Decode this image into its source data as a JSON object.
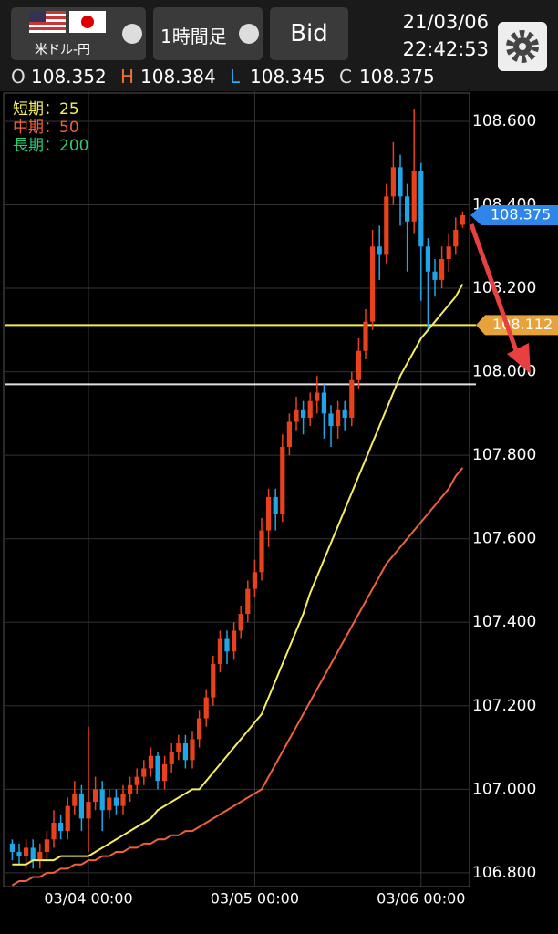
{
  "header": {
    "pair": "米ドル-円",
    "timeframe": "1時間足",
    "price_side": "Bid",
    "date": "21/03/06",
    "time": "22:42:53",
    "ohlc": [
      {
        "label": "O",
        "value": 108.352
      },
      {
        "label": "H",
        "value": 108.384
      },
      {
        "label": "L",
        "value": 108.345
      },
      {
        "label": "C",
        "value": 108.375
      }
    ]
  },
  "chart_data": {
    "type": "candlestick",
    "categories": [
      null,
      null,
      null,
      null,
      null,
      null,
      null,
      null,
      null,
      null,
      null,
      "03/04 00:00",
      null,
      null,
      null,
      null,
      null,
      null,
      null,
      null,
      null,
      null,
      null,
      null,
      null,
      null,
      null,
      null,
      null,
      null,
      null,
      null,
      null,
      null,
      null,
      "03/05 00:00",
      null,
      null,
      null,
      null,
      null,
      null,
      null,
      null,
      null,
      null,
      null,
      null,
      null,
      null,
      null,
      null,
      null,
      null,
      null,
      null,
      null,
      null,
      null,
      "03/06 00:00",
      null,
      null,
      null,
      null,
      null,
      null
    ],
    "open": [
      106.87,
      106.85,
      106.84,
      106.86,
      106.83,
      106.85,
      106.88,
      106.92,
      106.9,
      106.96,
      106.99,
      106.93,
      106.97,
      107.0,
      106.95,
      106.98,
      106.96,
      106.99,
      107.01,
      107.03,
      107.05,
      107.08,
      107.02,
      107.06,
      107.09,
      107.11,
      107.07,
      107.12,
      107.17,
      107.22,
      107.3,
      107.36,
      107.33,
      107.38,
      107.42,
      107.48,
      107.52,
      107.62,
      107.7,
      107.66,
      107.82,
      107.88,
      107.91,
      107.89,
      107.93,
      107.95,
      107.9,
      107.87,
      107.91,
      107.89,
      107.98,
      108.05,
      108.12,
      108.3,
      108.28,
      108.42,
      108.49,
      108.42,
      108.36,
      108.48,
      108.3,
      108.24,
      108.22,
      108.27,
      108.3,
      108.352
    ],
    "high": [
      106.88,
      106.87,
      106.88,
      106.88,
      106.87,
      106.9,
      106.95,
      106.94,
      106.98,
      107.02,
      107.01,
      107.15,
      107.03,
      107.02,
      107.0,
      107.0,
      107.01,
      107.03,
      107.05,
      107.07,
      107.1,
      107.09,
      107.08,
      107.11,
      107.13,
      107.13,
      107.14,
      107.19,
      107.24,
      107.32,
      107.38,
      107.38,
      107.4,
      107.44,
      107.5,
      107.55,
      107.65,
      107.72,
      107.72,
      107.85,
      107.9,
      107.94,
      107.93,
      107.95,
      107.99,
      107.97,
      107.92,
      107.93,
      107.93,
      108.0,
      108.08,
      108.15,
      108.34,
      108.35,
      108.45,
      108.55,
      108.52,
      108.45,
      108.63,
      108.5,
      108.32,
      108.27,
      108.3,
      108.33,
      108.37,
      108.384
    ],
    "low": [
      106.83,
      106.82,
      106.81,
      106.81,
      106.81,
      106.83,
      106.86,
      106.88,
      106.88,
      106.94,
      106.9,
      106.85,
      106.95,
      106.9,
      106.93,
      106.94,
      106.94,
      106.97,
      106.99,
      107.01,
      107.03,
      107.0,
      107.0,
      107.04,
      107.07,
      107.05,
      107.05,
      107.1,
      107.15,
      107.2,
      107.28,
      107.3,
      107.31,
      107.36,
      107.4,
      107.46,
      107.5,
      107.58,
      107.62,
      107.64,
      107.8,
      107.86,
      107.85,
      107.87,
      107.9,
      107.84,
      107.82,
      107.84,
      107.86,
      107.87,
      107.96,
      108.03,
      108.1,
      108.22,
      108.26,
      108.4,
      108.35,
      108.24,
      108.33,
      108.17,
      108.1,
      108.18,
      108.2,
      108.24,
      108.28,
      108.345
    ],
    "close": [
      106.85,
      106.84,
      106.86,
      106.83,
      106.85,
      106.88,
      106.92,
      106.9,
      106.96,
      106.99,
      106.93,
      106.97,
      107.0,
      106.95,
      106.98,
      106.96,
      106.99,
      107.01,
      107.03,
      107.05,
      107.08,
      107.02,
      107.06,
      107.09,
      107.11,
      107.07,
      107.12,
      107.17,
      107.22,
      107.3,
      107.36,
      107.33,
      107.38,
      107.42,
      107.48,
      107.52,
      107.62,
      107.7,
      107.66,
      107.82,
      107.88,
      107.91,
      107.89,
      107.93,
      107.95,
      107.9,
      107.87,
      107.91,
      107.89,
      107.98,
      108.05,
      108.12,
      108.3,
      108.28,
      108.42,
      108.49,
      108.42,
      108.36,
      108.48,
      108.3,
      108.24,
      108.22,
      108.27,
      108.3,
      108.34,
      108.375
    ],
    "up_color": "#e8421c",
    "down_color": "#1ea6e8",
    "moving_averages": [
      {
        "name": "短期：25",
        "color": "#f5f05a",
        "values": [
          106.82,
          106.82,
          106.82,
          106.83,
          106.83,
          106.83,
          106.83,
          106.84,
          106.84,
          106.84,
          106.84,
          106.84,
          106.85,
          106.86,
          106.87,
          106.88,
          106.89,
          106.9,
          106.91,
          106.92,
          106.93,
          106.95,
          106.96,
          106.97,
          106.98,
          106.99,
          107.0,
          107.0,
          107.02,
          107.04,
          107.06,
          107.08,
          107.1,
          107.12,
          107.14,
          107.16,
          107.18,
          107.22,
          107.26,
          107.3,
          107.34,
          107.38,
          107.42,
          107.47,
          107.51,
          107.55,
          107.59,
          107.63,
          107.67,
          107.71,
          107.75,
          107.79,
          107.83,
          107.87,
          107.91,
          107.95,
          107.99,
          108.02,
          108.05,
          108.08,
          108.1,
          108.12,
          108.14,
          108.16,
          108.18,
          108.21
        ]
      },
      {
        "name": "中期：50",
        "color": "#f0603c",
        "values": [
          106.77,
          106.78,
          106.78,
          106.79,
          106.79,
          106.8,
          106.8,
          106.81,
          106.81,
          106.82,
          106.82,
          106.83,
          106.83,
          106.84,
          106.84,
          106.85,
          106.85,
          106.86,
          106.86,
          106.87,
          106.87,
          106.88,
          106.88,
          106.89,
          106.89,
          106.9,
          106.9,
          106.91,
          106.92,
          106.93,
          106.94,
          106.95,
          106.96,
          106.97,
          106.98,
          106.99,
          107.0,
          107.03,
          107.06,
          107.09,
          107.12,
          107.15,
          107.18,
          107.21,
          107.24,
          107.27,
          107.3,
          107.33,
          107.36,
          107.39,
          107.42,
          107.45,
          107.48,
          107.51,
          107.54,
          107.56,
          107.58,
          107.6,
          107.62,
          107.64,
          107.66,
          107.68,
          107.7,
          107.72,
          107.75,
          107.77
        ]
      },
      {
        "name": "長期：200",
        "color": "#2ecc71"
      }
    ],
    "horizontal_lines": [
      {
        "value": 108.112,
        "color": "#f5f03a",
        "tag_color": "#e8a23a"
      },
      {
        "value": 107.97,
        "color": "#e0e0e0"
      }
    ],
    "current_price": {
      "value": 108.375,
      "color": "#2f86e8"
    },
    "ylim": [
      106.767,
      108.672
    ],
    "yticks": [
      {
        "value": 106.8,
        "label": "106.800"
      },
      {
        "value": 107.0,
        "label": "107.000"
      },
      {
        "value": 107.2,
        "label": "107.200"
      },
      {
        "value": 107.4,
        "label": "107.400"
      },
      {
        "value": 107.6,
        "label": "107.600"
      },
      {
        "value": 107.8,
        "label": "107.800"
      },
      {
        "value": 108.0,
        "label": "108.000"
      },
      {
        "value": 108.2,
        "label": "108.200"
      },
      {
        "value": 108.4,
        "label": "108.400"
      },
      {
        "value": 108.6,
        "label": "108.600"
      }
    ],
    "grid": true
  }
}
